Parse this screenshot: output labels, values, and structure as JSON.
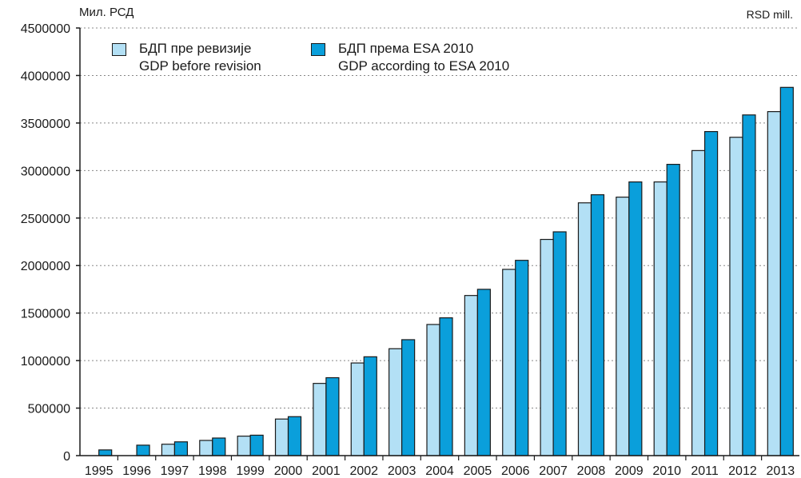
{
  "units": {
    "left": "Мил. РСД",
    "right": "RSD mill."
  },
  "colors": {
    "before_revision": "#b3e0f5",
    "esa2010": "#0a9fdb",
    "outline": "#1a1a1a",
    "grid": "#888888"
  },
  "chart_data": {
    "type": "bar",
    "categories": [
      "1995",
      "1996",
      "1997",
      "1998",
      "1999",
      "2000",
      "2001",
      "2002",
      "2003",
      "2004",
      "2005",
      "2006",
      "2007",
      "2008",
      "2009",
      "2010",
      "2011",
      "2012",
      "2013"
    ],
    "series": [
      {
        "name": "БДП пре ревизије / GDP before revision",
        "label_line1": "БДП пре ревизије",
        "label_line2": "GDP before revision",
        "values": [
          null,
          null,
          120000,
          160000,
          205000,
          385000,
          760000,
          975000,
          1125000,
          1380000,
          1685000,
          1960000,
          2275000,
          2660000,
          2720000,
          2880000,
          3210000,
          3350000,
          3620000
        ]
      },
      {
        "name": "БДП према ESA 2010 / GDP according to ESA 2010",
        "label_line1": "БДП према ESA 2010",
        "label_line2": "GDP according to ESA 2010",
        "values": [
          60000,
          110000,
          145000,
          185000,
          215000,
          410000,
          820000,
          1040000,
          1220000,
          1450000,
          1750000,
          2055000,
          2355000,
          2745000,
          2880000,
          3065000,
          3410000,
          3585000,
          3875000
        ]
      }
    ],
    "yticks": [
      "0",
      "500000",
      "1000000",
      "1500000",
      "2000000",
      "2500000",
      "3000000",
      "3500000",
      "4000000",
      "4500000"
    ],
    "ylim": [
      0,
      4500000
    ],
    "grid": "horizontal dotted",
    "legend_position": "top-left"
  }
}
